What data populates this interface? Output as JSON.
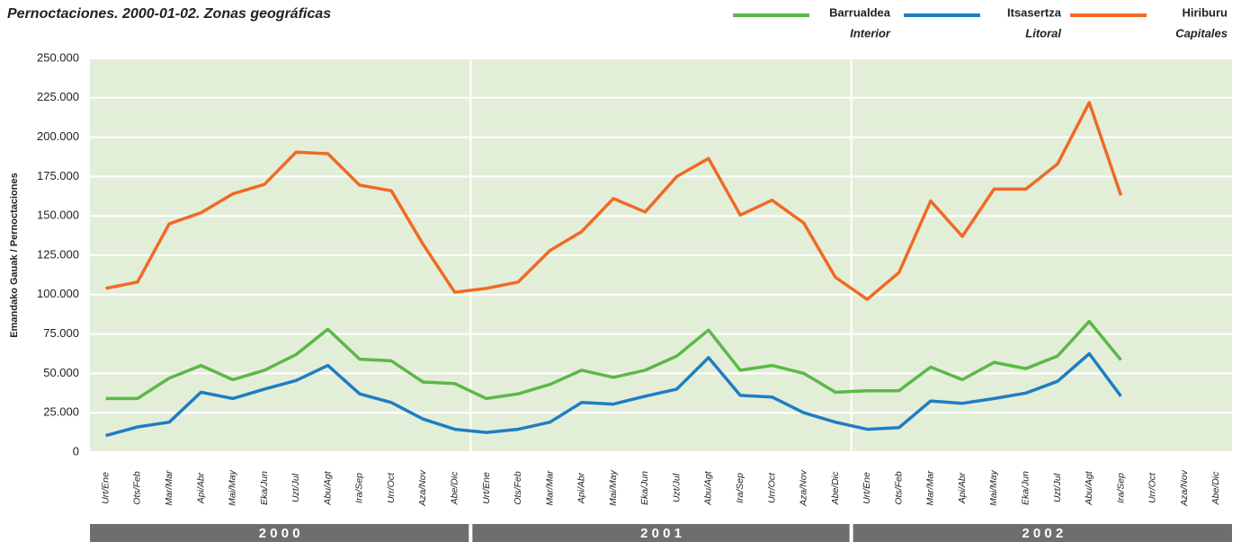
{
  "chart_data": {
    "type": "line",
    "title": "Pernoctaciones. 2000-01-02. Zonas geográficas",
    "y_label": "Emandako Gauak / Pernoctaciones",
    "groups": [
      "2 0 0 0",
      "2 0 0 1",
      "2 0 0 2"
    ],
    "categories": [
      "Urt/Ene",
      "Ots/Feb",
      "Mar/Mar",
      "Api/Abr",
      "Mai/May",
      "Eka/Jun",
      "Uzt/Jul",
      "Abu/Agt",
      "Ira/Sep",
      "Urr/Oct",
      "Aza/Nov",
      "Abe/Dic",
      "Urt/Ene",
      "Ots/Feb",
      "Mar/Mar",
      "Api/Abr",
      "Mai/May",
      "Eka/Jun",
      "Uzt/Jul",
      "Abu/Agt",
      "Ira/Sep",
      "Urr/Oct",
      "Aza/Nov",
      "Abe/Dic",
      "Urt/Ene",
      "Ots/Feb",
      "Mar/Mar",
      "Api/Abr",
      "Mai/May",
      "Eka/Jun",
      "Uzt/Jul",
      "Abu/Agt",
      "Ira/Sep",
      "Urr/Oct",
      "Aza/Nov",
      "Abe/Dic"
    ],
    "series": [
      {
        "name": "Barrualdea",
        "subname": "Interior",
        "color": "#5cb848",
        "values": [
          34000,
          34000,
          47000,
          55000,
          46000,
          52000,
          62000,
          78000,
          59000,
          58000,
          44500,
          43500,
          34000,
          37000,
          43000,
          52000,
          47500,
          52000,
          61000,
          77500,
          52000,
          55000,
          50000,
          38000,
          39000,
          39000,
          54000,
          46000,
          57000,
          53000,
          61000,
          83000,
          58500,
          null,
          null,
          null
        ]
      },
      {
        "name": "Itsasertza",
        "subname": "Litoral",
        "color": "#1f7dc2",
        "values": [
          10500,
          16000,
          19000,
          38000,
          34000,
          40000,
          45500,
          55000,
          37000,
          31500,
          21000,
          14500,
          12500,
          14500,
          19000,
          31500,
          30500,
          35500,
          40000,
          60000,
          36000,
          35000,
          25000,
          19000,
          14500,
          15500,
          32500,
          31000,
          34000,
          37500,
          45000,
          62500,
          35500,
          null,
          null,
          null
        ]
      },
      {
        "name": "Hiriburu",
        "subname": "Capitales",
        "color": "#ef6a24",
        "values": [
          104000,
          108000,
          145000,
          152000,
          164000,
          170000,
          190500,
          189500,
          169500,
          166000,
          132000,
          101500,
          104000,
          108000,
          128000,
          140000,
          161000,
          152500,
          175000,
          186500,
          150500,
          160000,
          145500,
          111000,
          97000,
          114000,
          159500,
          137000,
          167000,
          167000,
          183000,
          222000,
          163000,
          null,
          null,
          null
        ]
      }
    ],
    "ylim": [
      0,
      250000
    ],
    "yticks": [
      0,
      {
        "value": 25000,
        "label": "25.000"
      },
      {
        "value": 50000,
        "label": "50.000"
      },
      {
        "value": 75000,
        "label": "75.000"
      },
      {
        "value": 100000,
        "label": "100.000"
      },
      {
        "value": 125000,
        "label": "125.000"
      },
      {
        "value": 150000,
        "label": "150.000"
      },
      {
        "value": 175000,
        "label": "175.000"
      },
      {
        "value": 200000,
        "label": "200.000"
      },
      {
        "value": 225000,
        "label": "225.000"
      },
      {
        "value": 250000,
        "label": "250.000"
      }
    ],
    "grid": true,
    "plot_background": "#e3eed9",
    "group_band_color": "#6d6e70"
  }
}
